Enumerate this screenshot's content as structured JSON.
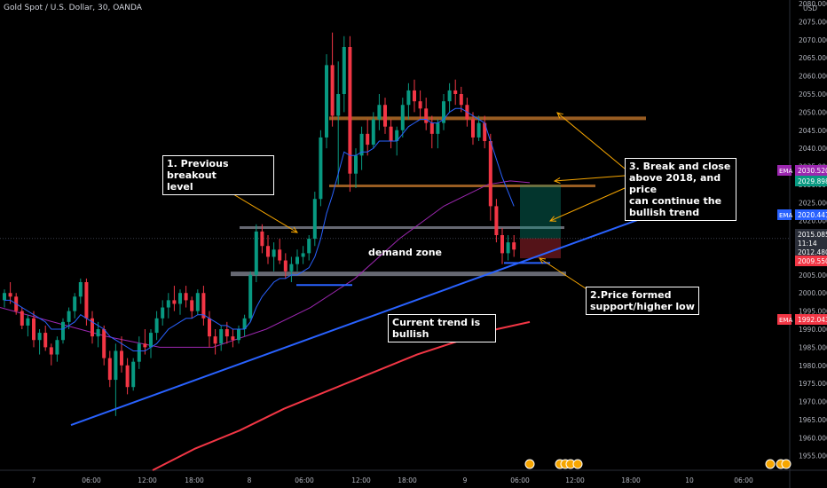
{
  "header": {
    "title": "Gold Spot / U.S. Dollar, 30, OANDA",
    "currency": "USD"
  },
  "chart_data": {
    "type": "candlestick",
    "y_axis": {
      "ylim": [
        1951,
        2081
      ],
      "ticks": [
        1955,
        1960,
        1965,
        1970,
        1975,
        1980,
        1985,
        1990,
        1995,
        2000,
        2005,
        2010,
        2015,
        2020,
        2025,
        2030,
        2035,
        2040,
        2045,
        2050,
        2055,
        2060,
        2065,
        2070,
        2075,
        2080
      ],
      "tick_labels": [
        "1955.000",
        "1960.000",
        "1965.000",
        "1970.000",
        "1975.000",
        "1980.000",
        "1985.000",
        "1990.000",
        "1995.000",
        "2000.000",
        "2005.000",
        "2010.000",
        "2015.000",
        "2020.000",
        "2025.000",
        "2030.000",
        "2035.000",
        "2040.000",
        "2045.000",
        "2050.000",
        "2055.000",
        "2060.000",
        "2065.000",
        "2070.000",
        "2075.000",
        "2080.000"
      ]
    },
    "x_axis": {
      "tick_labels": [
        "7",
        "06:00",
        "12:00",
        "18:00",
        "8",
        "06:00",
        "12:00",
        "18:00",
        "9",
        "06:00",
        "12:00",
        "18:00",
        "10",
        "06:00"
      ]
    },
    "price_tags": [
      {
        "label": "EMA",
        "value": "2030.520",
        "color": "#9c27b0",
        "price": 2030.52
      },
      {
        "label": "",
        "value": "2029.898",
        "color": "#089981",
        "price": 2029.898
      },
      {
        "label": "EMA",
        "value": "2020.441",
        "color": "#2962ff",
        "price": 2020.441
      },
      {
        "label": "",
        "value": "2015.085",
        "color": "#2a2e39",
        "price": 2015.085
      },
      {
        "label": "",
        "value": "11:14",
        "color": "#2a2e39",
        "price": 2013.9
      },
      {
        "label": "",
        "value": "2012.480",
        "color": "#2a2e39",
        "price": 2012.48
      },
      {
        "label": "",
        "value": "2009.550",
        "color": "#f23645",
        "price": 2009.55
      },
      {
        "label": "EMA",
        "value": "1992.043",
        "color": "#f23645",
        "price": 1992.043
      }
    ],
    "levels": [
      {
        "name": "resistance-2048",
        "price": 2048.3,
        "color": "#b46e28"
      },
      {
        "name": "level-2030",
        "price": 2029.6,
        "color": "#b46e28"
      },
      {
        "name": "level-2018",
        "price": 2018.1,
        "color": "#787b86"
      },
      {
        "name": "demand-zone-2005",
        "price": 2005.3,
        "color": "#787b86"
      }
    ],
    "annotations": {
      "previous_breakout": "1. Previous breakout\nlevel",
      "break_close": "3. Break and close\nabove 2018, and price\ncan continue the\nbullish trend",
      "demand_zone": "demand zone",
      "support": "2.Price formed\nsupport/higher low",
      "trend": "Current trend is bullish"
    },
    "candles": [
      [
        1998,
        2001,
        1996,
        2000
      ],
      [
        2000,
        2003,
        1997,
        1999
      ],
      [
        1999,
        2000,
        1994,
        1995
      ],
      [
        1995,
        1996,
        1990,
        1991
      ],
      [
        1991,
        1994,
        1988,
        1993
      ],
      [
        1993,
        1995,
        1985,
        1987
      ],
      [
        1987,
        1990,
        1983,
        1989
      ],
      [
        1989,
        1991,
        1984,
        1985
      ],
      [
        1985,
        1986,
        1980,
        1983
      ],
      [
        1983,
        1988,
        1981,
        1987
      ],
      [
        1987,
        1993,
        1986,
        1992
      ],
      [
        1992,
        1996,
        1990,
        1995
      ],
      [
        1995,
        2000,
        1993,
        1999
      ],
      [
        1999,
        2004,
        1997,
        2003
      ],
      [
        2003,
        2004,
        1991,
        1993
      ],
      [
        1993,
        1995,
        1986,
        1988
      ],
      [
        1988,
        1992,
        1985,
        1990
      ],
      [
        1990,
        1991,
        1980,
        1982
      ],
      [
        1982,
        1984,
        1974,
        1976
      ],
      [
        1976,
        1986,
        1966,
        1984
      ],
      [
        1984,
        1988,
        1978,
        1980
      ],
      [
        1980,
        1982,
        1972,
        1974
      ],
      [
        1974,
        1982,
        1973,
        1981
      ],
      [
        1981,
        1988,
        1979,
        1986
      ],
      [
        1986,
        1990,
        1983,
        1985
      ],
      [
        1985,
        1990,
        1982,
        1989
      ],
      [
        1989,
        1995,
        1987,
        1993
      ],
      [
        1993,
        1998,
        1991,
        1996
      ],
      [
        1996,
        2000,
        1993,
        1998
      ],
      [
        1998,
        2002,
        1995,
        1997
      ],
      [
        1997,
        2001,
        1994,
        2000
      ],
      [
        2000,
        2002,
        1996,
        1998
      ],
      [
        1998,
        1999,
        1993,
        1995
      ],
      [
        1995,
        2001,
        1994,
        2000
      ],
      [
        2000,
        2002,
        1991,
        1993
      ],
      [
        1993,
        1995,
        1985,
        1988
      ],
      [
        1988,
        1990,
        1983,
        1986
      ],
      [
        1986,
        1991,
        1984,
        1990
      ],
      [
        1990,
        1992,
        1986,
        1988
      ],
      [
        1988,
        1990,
        1985,
        1987
      ],
      [
        1987,
        1991,
        1986,
        1990
      ],
      [
        1990,
        1994,
        1988,
        1993
      ],
      [
        1993,
        2006,
        1992,
        2005
      ],
      [
        2005,
        2019,
        2003,
        2017
      ],
      [
        2017,
        2019,
        2011,
        2013
      ],
      [
        2013,
        2016,
        2008,
        2010
      ],
      [
        2010,
        2014,
        2006,
        2012
      ],
      [
        2012,
        2015,
        2008,
        2009
      ],
      [
        2009,
        2011,
        2004,
        2006
      ],
      [
        2006,
        2010,
        2003,
        2008
      ],
      [
        2008,
        2012,
        2006,
        2010
      ],
      [
        2010,
        2013,
        2008,
        2011
      ],
      [
        2011,
        2016,
        2009,
        2015
      ],
      [
        2015,
        2028,
        2013,
        2026
      ],
      [
        2026,
        2045,
        2024,
        2043
      ],
      [
        2043,
        2066,
        2040,
        2063
      ],
      [
        2063,
        2072,
        2046,
        2049
      ],
      [
        2049,
        2064,
        2030,
        2055
      ],
      [
        2055,
        2071,
        2050,
        2068
      ],
      [
        2068,
        2071,
        2028,
        2033
      ],
      [
        2033,
        2040,
        2029,
        2038
      ],
      [
        2038,
        2046,
        2034,
        2044
      ],
      [
        2044,
        2048,
        2038,
        2041
      ],
      [
        2041,
        2050,
        2040,
        2048
      ],
      [
        2048,
        2055,
        2045,
        2052
      ],
      [
        2052,
        2054,
        2044,
        2046
      ],
      [
        2046,
        2048,
        2040,
        2042
      ],
      [
        2042,
        2046,
        2038,
        2045
      ],
      [
        2045,
        2054,
        2043,
        2052
      ],
      [
        2052,
        2058,
        2048,
        2056
      ],
      [
        2056,
        2059,
        2050,
        2053
      ],
      [
        2053,
        2056,
        2048,
        2051
      ],
      [
        2051,
        2054,
        2045,
        2047
      ],
      [
        2047,
        2049,
        2040,
        2044
      ],
      [
        2044,
        2048,
        2040,
        2047
      ],
      [
        2047,
        2055,
        2045,
        2053
      ],
      [
        2053,
        2058,
        2050,
        2056
      ],
      [
        2056,
        2059,
        2052,
        2055
      ],
      [
        2055,
        2057,
        2050,
        2052
      ],
      [
        2052,
        2054,
        2046,
        2048
      ],
      [
        2048,
        2050,
        2041,
        2043
      ],
      [
        2043,
        2049,
        2042,
        2047
      ],
      [
        2047,
        2049,
        2040,
        2042
      ],
      [
        2042,
        2044,
        2020,
        2024
      ],
      [
        2024,
        2026,
        2014,
        2016
      ],
      [
        2016,
        2018,
        2008,
        2011
      ],
      [
        2011,
        2016,
        2009,
        2014
      ],
      [
        2014,
        2016,
        2010,
        2012
      ]
    ],
    "ema_fast": [
      1998,
      1998,
      1997,
      1996,
      1995,
      1994,
      1993,
      1992,
      1990,
      1990,
      1990,
      1991,
      1992,
      1994,
      1993,
      1992,
      1991,
      1990,
      1988,
      1987,
      1986,
      1985,
      1984,
      1984,
      1984,
      1985,
      1986,
      1988,
      1990,
      1991,
      1992,
      1993,
      1993,
      1994,
      1994,
      1993,
      1992,
      1991,
      1991,
      1990,
      1990,
      1990,
      1992,
      1996,
      1999,
      2001,
      2003,
      2004,
      2004,
      2005,
      2005,
      2006,
      2007,
      2010,
      2015,
      2022,
      2027,
      2033,
      2039,
      2038,
      2038,
      2039,
      2039,
      2040,
      2042,
      2042,
      2042,
      2042,
      2044,
      2046,
      2047,
      2048,
      2048,
      2047,
      2047,
      2048,
      2050,
      2051,
      2051,
      2050,
      2049,
      2048,
      2047,
      2042,
      2037,
      2032,
      2028,
      2024
    ]
  }
}
